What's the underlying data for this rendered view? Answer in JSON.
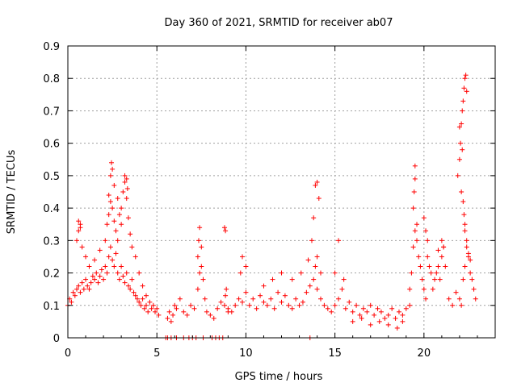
{
  "chart_data": {
    "type": "scatter",
    "title": "Day 360 of 2021, SRMTID for receiver ab07",
    "xlabel": "GPS time / hours",
    "ylabel": "SRMTID / TECUs",
    "xlim": [
      0,
      24
    ],
    "ylim": [
      0,
      0.9
    ],
    "xticks": [
      "0",
      "5",
      "10",
      "15",
      "20"
    ],
    "yticks": [
      "0",
      "0.1",
      "0.2",
      "0.3",
      "0.4",
      "0.5",
      "0.6",
      "0.7",
      "0.8",
      "0.9"
    ],
    "grid": true,
    "marker": "+",
    "marker_color": "#ff0000",
    "series": [
      {
        "name": "SRMTID",
        "x": [
          0.0,
          0.1,
          0.2,
          0.3,
          0.4,
          0.5,
          0.6,
          0.7,
          0.8,
          0.9,
          1.0,
          1.1,
          1.2,
          1.3,
          1.4,
          1.5,
          1.6,
          1.7,
          1.8,
          1.9,
          2.0,
          2.1,
          2.2,
          2.3,
          2.4,
          2.5,
          2.6,
          2.7,
          2.8,
          2.9,
          3.0,
          3.1,
          3.2,
          3.3,
          3.4,
          3.5,
          3.6,
          3.7,
          3.8,
          3.9,
          4.0,
          4.1,
          4.2,
          4.3,
          4.4,
          4.5,
          4.6,
          4.7,
          4.8,
          4.9,
          5.0,
          5.1,
          0.5,
          0.6,
          0.7,
          0.8,
          1.0,
          1.2,
          1.5,
          1.8,
          2.1,
          2.2,
          2.3,
          2.4,
          2.5,
          2.6,
          2.7,
          2.8,
          2.9,
          3.0,
          3.1,
          3.2,
          3.3,
          3.4,
          3.5,
          3.6,
          3.8,
          4.0,
          4.2,
          4.4,
          0.6,
          0.7,
          2.3,
          2.4,
          2.45,
          2.5,
          2.6,
          2.8,
          3.0,
          3.2,
          3.3,
          3.35,
          5.6,
          5.7,
          5.8,
          5.9,
          6.0,
          6.1,
          6.3,
          6.5,
          6.7,
          6.9,
          7.1,
          7.3,
          7.4,
          7.5,
          7.6,
          7.7,
          7.8,
          8.0,
          8.2,
          8.4,
          8.6,
          8.8,
          8.85,
          8.9,
          9.0,
          7.3,
          7.35,
          7.4,
          7.5,
          8.8,
          8.85,
          5.5,
          5.6,
          5.8,
          6.1,
          6.5,
          6.8,
          7.0,
          7.2,
          7.6,
          8.1,
          8.3,
          8.5,
          8.7,
          9.0,
          9.2,
          9.4,
          9.6,
          9.8,
          10.0,
          10.2,
          10.4,
          10.6,
          10.8,
          11.0,
          11.2,
          11.4,
          11.6,
          11.8,
          12.0,
          12.2,
          12.4,
          12.6,
          12.8,
          13.0,
          13.2,
          13.4,
          13.6,
          13.8,
          14.0,
          14.2,
          14.4,
          14.6,
          14.8,
          9.7,
          9.8,
          10.0,
          11.0,
          11.5,
          12.0,
          12.6,
          13.1,
          13.5,
          13.7,
          13.8,
          13.9,
          14.0,
          14.1,
          14.2,
          13.6,
          13.9,
          14.0,
          15.0,
          15.2,
          15.4,
          15.6,
          15.8,
          16.0,
          16.2,
          16.4,
          16.6,
          16.8,
          17.0,
          17.2,
          17.4,
          17.6,
          17.8,
          18.0,
          18.2,
          18.4,
          18.6,
          18.8,
          19.0,
          19.2,
          15.0,
          15.2,
          15.5,
          16.0,
          16.5,
          17.0,
          17.5,
          18.0,
          18.5,
          18.8,
          19.2,
          19.3,
          19.4,
          19.5,
          19.6,
          19.7,
          19.8,
          19.9,
          20.0,
          20.1,
          20.2,
          20.3,
          20.4,
          20.5,
          20.6,
          20.7,
          20.8,
          20.9,
          21.0,
          21.1,
          21.2,
          21.4,
          21.6,
          21.8,
          22.0,
          22.1,
          22.2,
          22.3,
          22.4,
          22.5,
          22.6,
          22.7,
          22.8,
          22.9,
          19.4,
          19.45,
          19.5,
          19.5,
          19.6,
          20.0,
          20.1,
          20.2,
          20.8,
          21.0,
          21.1,
          21.9,
          22.0,
          22.05,
          22.1,
          22.15,
          22.2,
          22.25,
          22.3,
          22.35,
          22.4,
          22.2,
          22.25,
          22.3,
          22.1,
          22.0,
          22.15,
          22.3,
          22.4,
          22.5,
          22.6
        ],
        "y": [
          0.1,
          0.12,
          0.11,
          0.14,
          0.13,
          0.15,
          0.16,
          0.14,
          0.17,
          0.15,
          0.18,
          0.16,
          0.15,
          0.17,
          0.19,
          0.18,
          0.2,
          0.17,
          0.19,
          0.21,
          0.18,
          0.22,
          0.2,
          0.25,
          0.28,
          0.24,
          0.22,
          0.26,
          0.2,
          0.18,
          0.22,
          0.19,
          0.17,
          0.2,
          0.16,
          0.15,
          0.18,
          0.14,
          0.13,
          0.12,
          0.11,
          0.1,
          0.12,
          0.09,
          0.1,
          0.08,
          0.11,
          0.09,
          0.1,
          0.08,
          0.09,
          0.07,
          0.3,
          0.33,
          0.35,
          0.28,
          0.25,
          0.22,
          0.24,
          0.27,
          0.3,
          0.35,
          0.38,
          0.42,
          0.4,
          0.36,
          0.33,
          0.3,
          0.38,
          0.35,
          0.45,
          0.48,
          0.43,
          0.37,
          0.32,
          0.28,
          0.25,
          0.2,
          0.16,
          0.13,
          0.36,
          0.34,
          0.44,
          0.5,
          0.54,
          0.52,
          0.47,
          0.43,
          0.4,
          0.5,
          0.49,
          0.46,
          0.06,
          0.08,
          0.05,
          0.07,
          0.1,
          0.09,
          0.12,
          0.08,
          0.07,
          0.1,
          0.09,
          0.15,
          0.2,
          0.22,
          0.18,
          0.12,
          0.08,
          0.07,
          0.06,
          0.09,
          0.11,
          0.1,
          0.13,
          0.15,
          0.08,
          0.25,
          0.3,
          0.34,
          0.28,
          0.34,
          0.33,
          0.0,
          0.0,
          0.0,
          0.0,
          0.0,
          0.0,
          0.0,
          0.0,
          0.0,
          0.0,
          0.0,
          0.0,
          0.0,
          0.09,
          0.08,
          0.1,
          0.12,
          0.11,
          0.14,
          0.1,
          0.12,
          0.09,
          0.13,
          0.11,
          0.1,
          0.12,
          0.09,
          0.14,
          0.11,
          0.13,
          0.1,
          0.09,
          0.12,
          0.1,
          0.11,
          0.14,
          0.16,
          0.18,
          0.15,
          0.12,
          0.1,
          0.09,
          0.08,
          0.2,
          0.25,
          0.22,
          0.16,
          0.18,
          0.2,
          0.18,
          0.2,
          0.24,
          0.3,
          0.37,
          0.22,
          0.25,
          0.43,
          0.2,
          0.0,
          0.47,
          0.48,
          0.1,
          0.12,
          0.15,
          0.09,
          0.11,
          0.08,
          0.1,
          0.07,
          0.09,
          0.08,
          0.1,
          0.07,
          0.09,
          0.08,
          0.06,
          0.07,
          0.09,
          0.06,
          0.08,
          0.07,
          0.09,
          0.1,
          0.2,
          0.3,
          0.18,
          0.05,
          0.06,
          0.04,
          0.05,
          0.04,
          0.03,
          0.05,
          0.15,
          0.2,
          0.28,
          0.33,
          0.3,
          0.25,
          0.22,
          0.18,
          0.15,
          0.12,
          0.25,
          0.22,
          0.2,
          0.15,
          0.18,
          0.2,
          0.22,
          0.18,
          0.25,
          0.28,
          0.22,
          0.12,
          0.1,
          0.14,
          0.12,
          0.1,
          0.18,
          0.22,
          0.28,
          0.25,
          0.2,
          0.18,
          0.15,
          0.12,
          0.4,
          0.45,
          0.49,
          0.53,
          0.35,
          0.37,
          0.33,
          0.3,
          0.27,
          0.3,
          0.28,
          0.5,
          0.55,
          0.6,
          0.66,
          0.7,
          0.73,
          0.77,
          0.8,
          0.81,
          0.76,
          0.42,
          0.38,
          0.35,
          0.45,
          0.65,
          0.58,
          0.33,
          0.3,
          0.26,
          0.24
        ]
      }
    ]
  }
}
